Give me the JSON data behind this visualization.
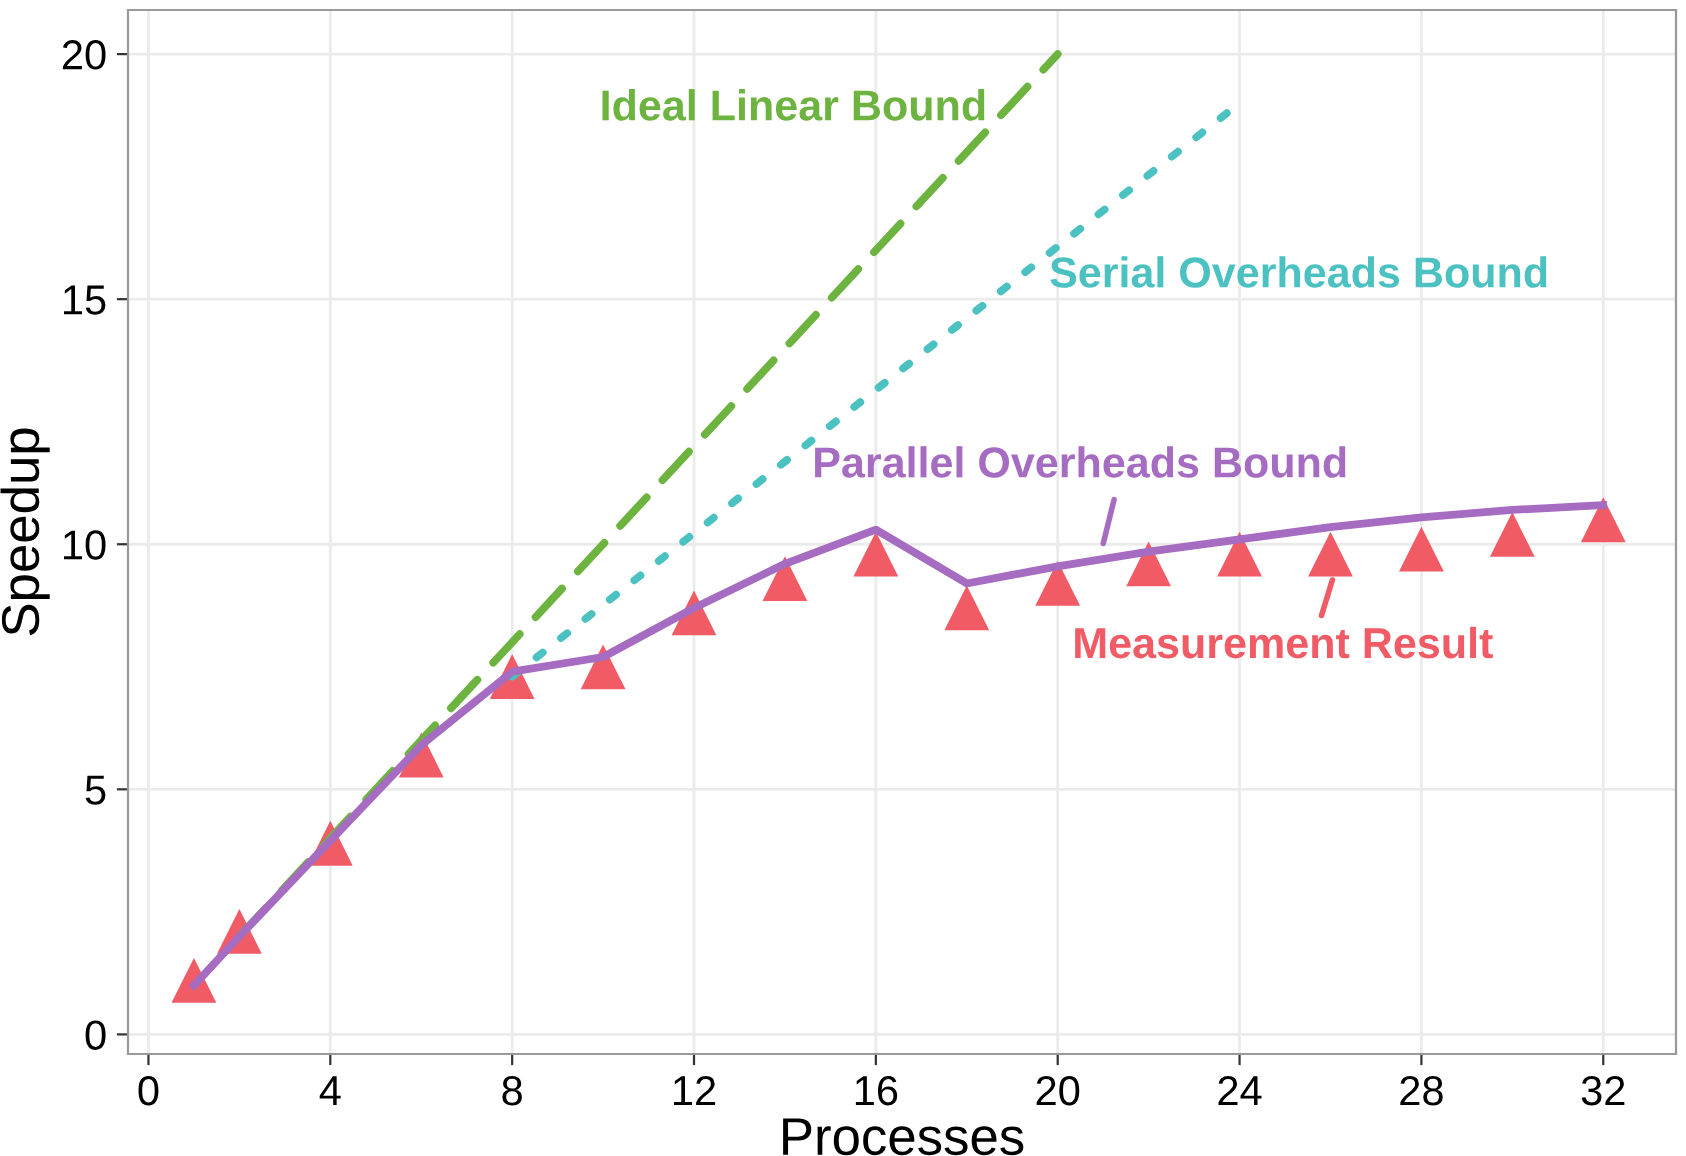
{
  "chart_data": {
    "type": "line",
    "xlabel": "Processes",
    "ylabel": "Speedup",
    "xlim": [
      -0.45,
      33.6
    ],
    "ylim": [
      -0.4,
      20.9
    ],
    "xticks": [
      0,
      4,
      8,
      12,
      16,
      20,
      24,
      28,
      32
    ],
    "yticks": [
      0,
      5,
      10,
      15,
      20
    ],
    "grid": true,
    "series": [
      {
        "name": "Ideal Linear Bound",
        "color": "#6db33f",
        "line_style": "dashed",
        "x": [
          2,
          20
        ],
        "values": [
          2,
          20
        ]
      },
      {
        "name": "Serial Overheads Bound",
        "color": "#4cc1c1",
        "line_style": "dotted",
        "x": [
          8,
          24
        ],
        "values": [
          7.3,
          19
        ]
      },
      {
        "name": "Parallel Overheads Bound",
        "color": "#a56cc1",
        "line_style": "solid",
        "x": [
          1,
          2,
          4,
          6,
          8,
          10,
          12,
          14,
          16,
          18,
          20,
          22,
          24,
          26,
          28,
          30,
          32
        ],
        "values": [
          1.0,
          2.0,
          3.95,
          5.9,
          7.4,
          7.7,
          8.7,
          9.6,
          10.3,
          9.2,
          9.55,
          9.85,
          10.1,
          10.35,
          10.55,
          10.7,
          10.8
        ]
      },
      {
        "name": "Measurement Result",
        "type": "scatter",
        "marker": "triangle",
        "color": "#f05b66",
        "x": [
          1,
          2,
          4,
          6,
          8,
          10,
          12,
          14,
          16,
          18,
          20,
          22,
          24,
          26,
          28,
          30,
          32
        ],
        "values": [
          1.1,
          2.1,
          3.9,
          5.7,
          7.3,
          7.5,
          8.6,
          9.3,
          9.8,
          8.7,
          9.2,
          9.6,
          9.8,
          9.8,
          9.9,
          10.2,
          10.5
        ]
      }
    ]
  }
}
